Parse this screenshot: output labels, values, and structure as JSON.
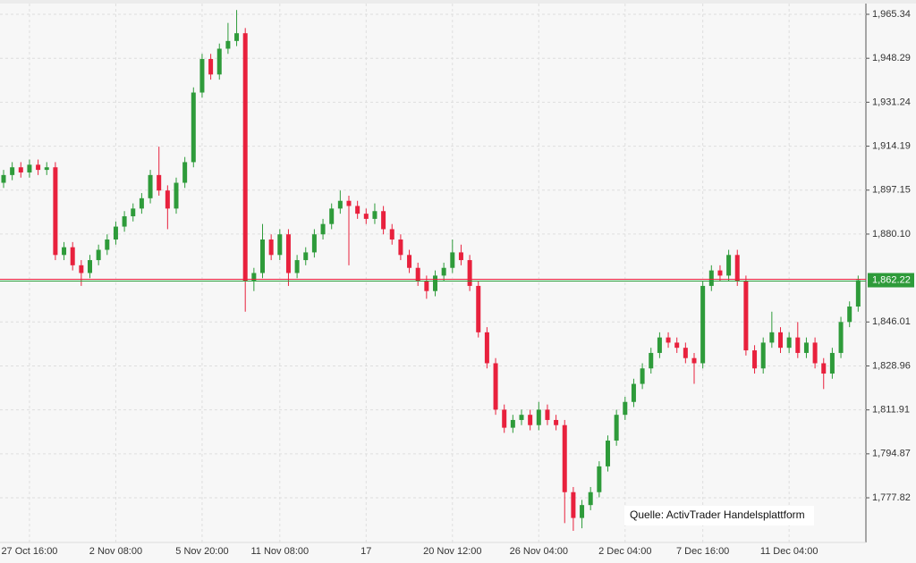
{
  "chart_data": {
    "type": "candlestick",
    "source": "Quelle: ActivTrader Handelsplattform",
    "categories": [
      null,
      null,
      null,
      "27 Oct 16:00",
      null,
      null,
      null,
      null,
      null,
      null,
      null,
      null,
      null,
      "2 Nov 08:00",
      null,
      null,
      null,
      null,
      null,
      null,
      null,
      null,
      null,
      "5 Nov 20:00",
      null,
      null,
      null,
      null,
      null,
      null,
      null,
      null,
      "11 Nov 08:00",
      null,
      null,
      null,
      null,
      null,
      null,
      null,
      null,
      null,
      "17",
      null,
      null,
      null,
      null,
      null,
      null,
      null,
      null,
      null,
      "20 Nov 12:00",
      null,
      null,
      null,
      null,
      null,
      null,
      null,
      null,
      null,
      "26 Nov 04:00",
      null,
      null,
      null,
      null,
      null,
      null,
      null,
      null,
      null,
      "2 Dec 04:00",
      null,
      null,
      null,
      null,
      null,
      null,
      null,
      null,
      "7 Dec 16:00",
      null,
      null,
      null,
      null,
      null,
      null,
      null,
      null,
      null,
      "11 Dec 04:00",
      null,
      null,
      null,
      null,
      null,
      null,
      null,
      null
    ],
    "open": [
      1900,
      1903,
      1906,
      1904,
      1907,
      1905,
      1906,
      1872,
      1875,
      1868,
      1865,
      1870,
      1874,
      1878,
      1883,
      1887,
      1890,
      1894,
      1903,
      1897,
      1890,
      1900,
      1908,
      1935,
      1948,
      1942,
      1952,
      1955,
      1958,
      1862,
      1865,
      1878,
      1872,
      1880,
      1865,
      1870,
      1873,
      1880,
      1884,
      1890,
      1893,
      1891,
      1888,
      1886,
      1889,
      1882,
      1878,
      1872,
      1867,
      1862,
      1858,
      1864,
      1867,
      1873,
      1870,
      1860,
      1842,
      1830,
      1812,
      1805,
      1808,
      1810,
      1806,
      1812,
      1808,
      1806,
      1780,
      1770,
      1775,
      1780,
      1790,
      1800,
      1810,
      1815,
      1822,
      1828,
      1834,
      1840,
      1838,
      1836,
      1832,
      1830,
      1860,
      1866,
      1864,
      1872,
      1862,
      1835,
      1828,
      1838,
      1842,
      1836,
      1840,
      1834,
      1838,
      1830,
      1826,
      1834,
      1846,
      1852
    ],
    "high": [
      1905,
      1908,
      1908,
      1909,
      1909,
      1908,
      1908,
      1877,
      1877,
      1870,
      1872,
      1876,
      1880,
      1885,
      1889,
      1892,
      1896,
      1905,
      1914,
      1899,
      1902,
      1910,
      1937,
      1950,
      1950,
      1954,
      1962,
      1967,
      1960,
      1867,
      1884,
      1880,
      1882,
      1882,
      1872,
      1875,
      1882,
      1886,
      1892,
      1897,
      1895,
      1893,
      1890,
      1892,
      1891,
      1884,
      1880,
      1874,
      1869,
      1864,
      1866,
      1869,
      1878,
      1876,
      1872,
      1862,
      1844,
      1832,
      1814,
      1810,
      1812,
      1812,
      1815,
      1814,
      1810,
      1808,
      1782,
      1777,
      1782,
      1792,
      1802,
      1812,
      1817,
      1824,
      1830,
      1836,
      1842,
      1842,
      1840,
      1838,
      1834,
      1862,
      1868,
      1868,
      1874,
      1874,
      1864,
      1837,
      1840,
      1850,
      1844,
      1842,
      1846,
      1840,
      1840,
      1832,
      1836,
      1848,
      1854,
      1864
    ],
    "low": [
      1898,
      1901,
      1902,
      1902,
      1903,
      1903,
      1870,
      1870,
      1866,
      1860,
      1863,
      1868,
      1872,
      1876,
      1881,
      1885,
      1888,
      1892,
      1895,
      1882,
      1888,
      1898,
      1906,
      1933,
      1940,
      1940,
      1950,
      1953,
      1850,
      1858,
      1863,
      1870,
      1870,
      1860,
      1863,
      1868,
      1871,
      1878,
      1882,
      1888,
      1868,
      1886,
      1884,
      1884,
      1880,
      1876,
      1870,
      1865,
      1860,
      1855,
      1856,
      1862,
      1865,
      1868,
      1858,
      1840,
      1828,
      1810,
      1803,
      1803,
      1806,
      1804,
      1804,
      1806,
      1804,
      1768,
      1765,
      1766,
      1773,
      1778,
      1788,
      1798,
      1808,
      1813,
      1820,
      1826,
      1832,
      1836,
      1834,
      1830,
      1822,
      1828,
      1858,
      1862,
      1862,
      1860,
      1833,
      1826,
      1826,
      1836,
      1834,
      1834,
      1832,
      1832,
      1828,
      1820,
      1824,
      1832,
      1844,
      1850
    ],
    "close": [
      1903,
      1906,
      1904,
      1907,
      1905,
      1906,
      1872,
      1875,
      1868,
      1865,
      1870,
      1874,
      1878,
      1883,
      1887,
      1890,
      1894,
      1903,
      1897,
      1890,
      1900,
      1908,
      1935,
      1948,
      1942,
      1952,
      1955,
      1958,
      1862,
      1865,
      1878,
      1872,
      1880,
      1865,
      1870,
      1873,
      1880,
      1884,
      1890,
      1893,
      1891,
      1888,
      1886,
      1889,
      1882,
      1878,
      1872,
      1867,
      1862,
      1858,
      1864,
      1867,
      1873,
      1870,
      1860,
      1842,
      1830,
      1812,
      1805,
      1808,
      1810,
      1806,
      1812,
      1808,
      1806,
      1780,
      1770,
      1775,
      1780,
      1790,
      1800,
      1810,
      1815,
      1822,
      1828,
      1834,
      1840,
      1838,
      1836,
      1832,
      1830,
      1860,
      1866,
      1864,
      1872,
      1862,
      1835,
      1828,
      1838,
      1842,
      1836,
      1840,
      1834,
      1838,
      1830,
      1826,
      1834,
      1846,
      1852,
      1862.22
    ],
    "up_color": "#2e9b3a",
    "down_color": "#e8213d",
    "last_price": {
      "value": 1862.22,
      "label": "1,862.22"
    },
    "ylim": [
      1760.5,
      1969.5
    ],
    "yticks": [
      {
        "value": 1965.34,
        "label": "1,965.34"
      },
      {
        "value": 1948.29,
        "label": "1,948.29"
      },
      {
        "value": 1931.24,
        "label": "1,931.24"
      },
      {
        "value": 1914.19,
        "label": "1,914.19"
      },
      {
        "value": 1897.15,
        "label": "1,897.15"
      },
      {
        "value": 1880.1,
        "label": "1,880.10"
      },
      {
        "value": 1846.01,
        "label": "1,846.01"
      },
      {
        "value": 1828.96,
        "label": "1,828.96"
      },
      {
        "value": 1811.91,
        "label": "1,811.91"
      },
      {
        "value": 1794.87,
        "label": "1,794.87"
      },
      {
        "value": 1777.82,
        "label": "1,777.82"
      }
    ],
    "grid": true
  }
}
